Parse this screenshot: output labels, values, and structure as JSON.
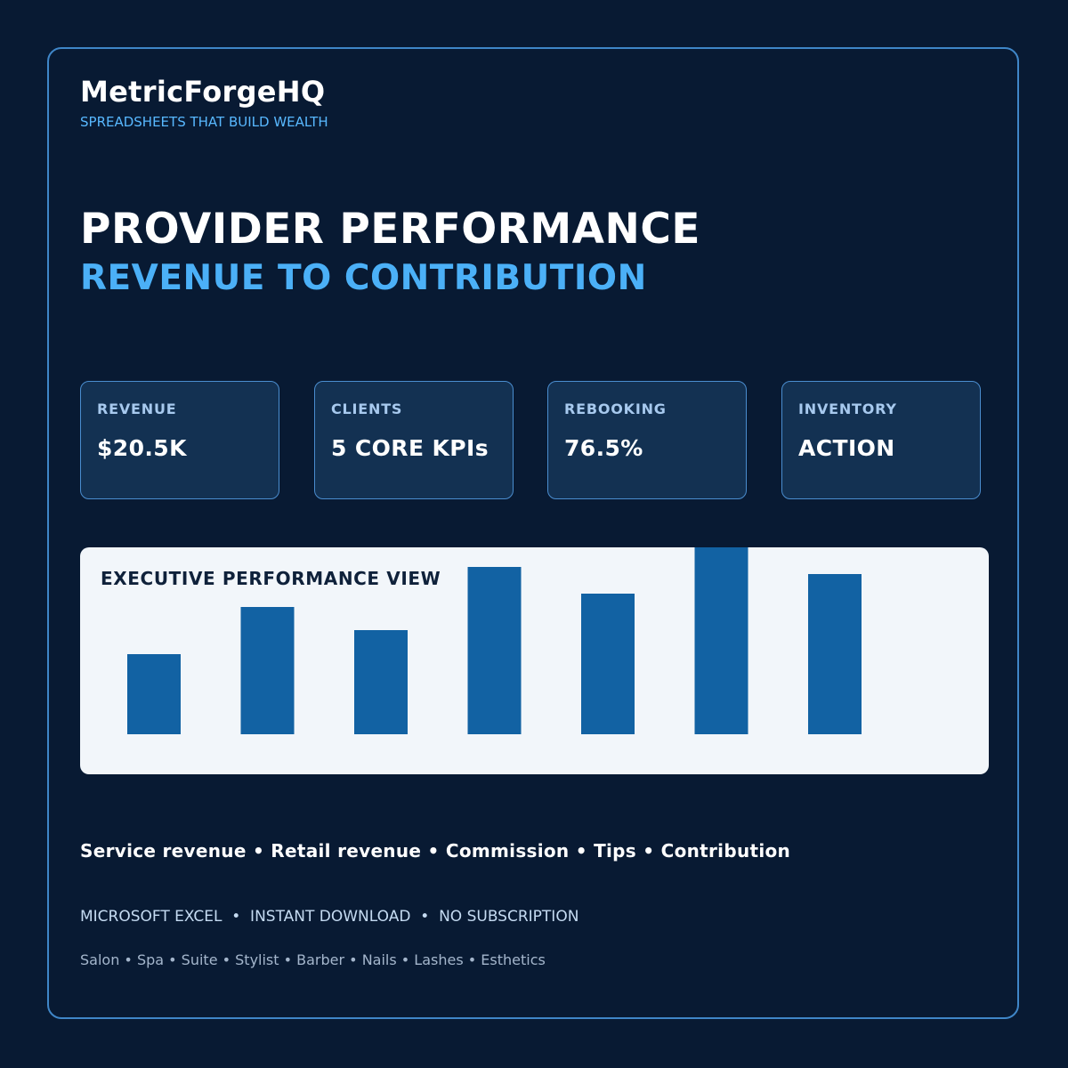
{
  "brand": {
    "name": "MetricForgeHQ",
    "tagline": "SPREADSHEETS THAT BUILD WEALTH"
  },
  "headline": {
    "title": "PROVIDER PERFORMANCE",
    "subtitle": "REVENUE TO CONTRIBUTION"
  },
  "kpis": [
    {
      "label": "REVENUE",
      "value": "$20.5K"
    },
    {
      "label": "CLIENTS",
      "value": "5 CORE KPIs"
    },
    {
      "label": "REBOOKING",
      "value": "76.5%"
    },
    {
      "label": "INVENTORY",
      "value": "ACTION"
    }
  ],
  "chart": {
    "title": "EXECUTIVE PERFORMANCE VIEW",
    "bar_color": "#1262a3",
    "values": [
      90,
      143,
      117,
      188,
      158,
      225,
      180
    ]
  },
  "bullets": "Service revenue • Retail revenue • Commission • Tips • Contribution",
  "features": "MICROSOFT EXCEL  •  INSTANT DOWNLOAD  •  NO SUBSCRIPTION",
  "audience": "Salon • Spa • Suite • Stylist • Barber • Nails • Lashes • Esthetics",
  "colors": {
    "background": "#081a33",
    "accent": "#4bb0f7",
    "card": "#133152",
    "card_border": "#4a8dcf"
  }
}
